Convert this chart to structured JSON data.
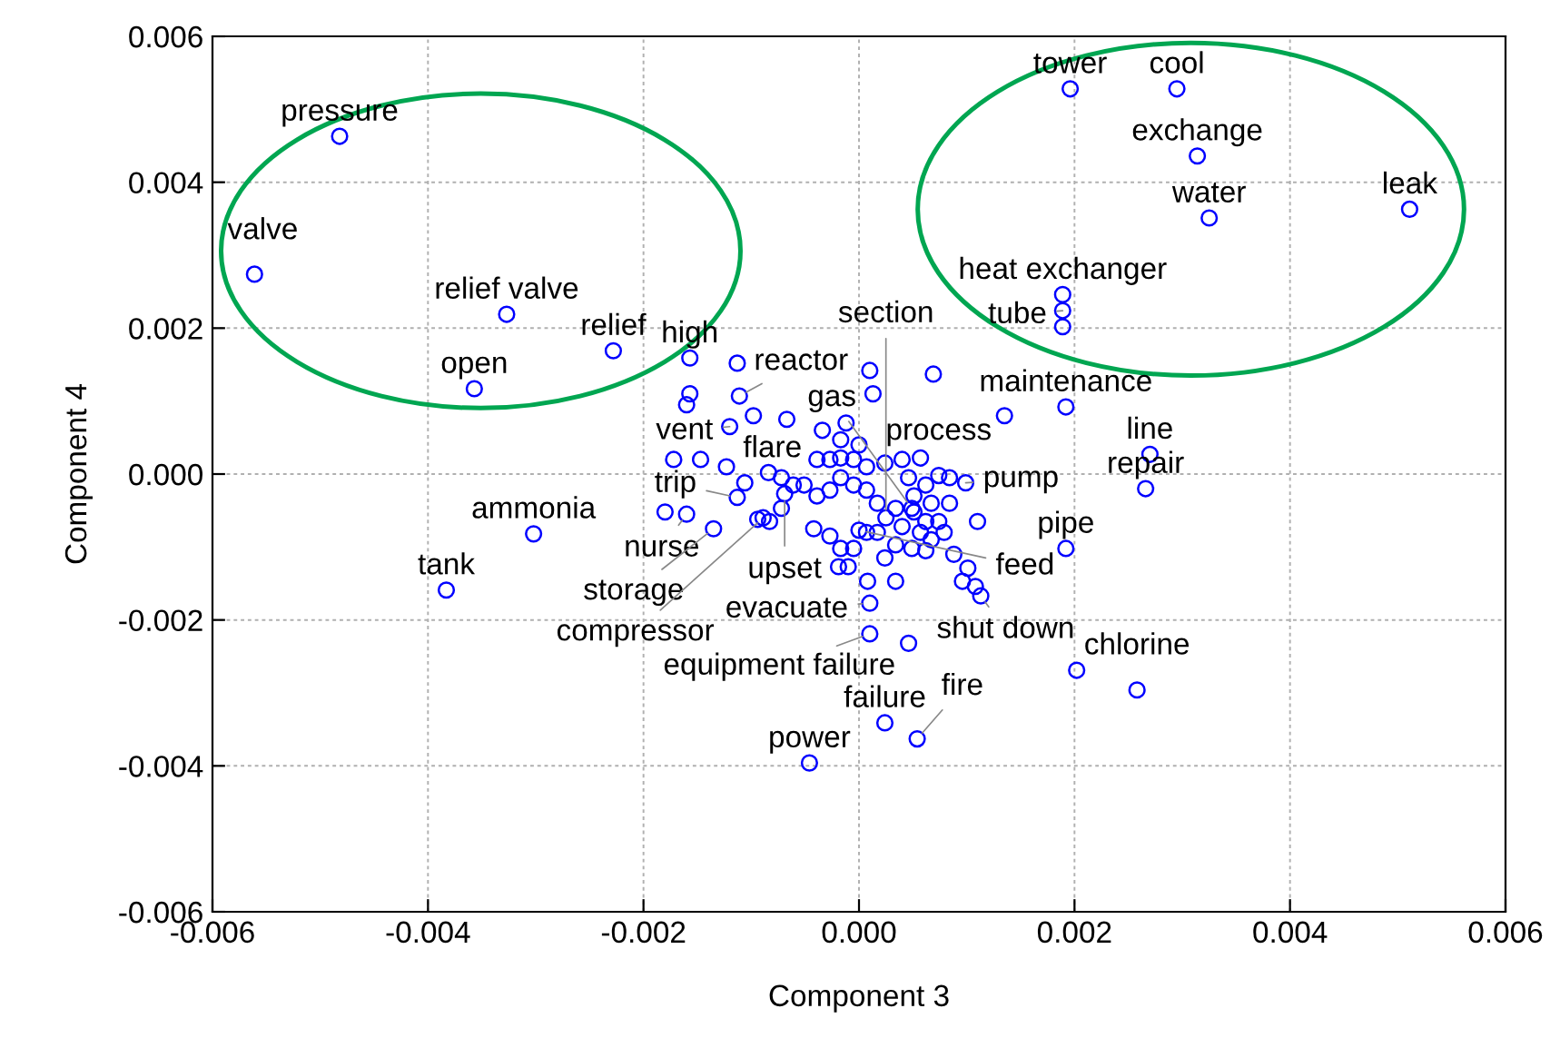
{
  "chart_data": {
    "type": "scatter",
    "xlabel": "Component 3",
    "ylabel": "Component 4",
    "xlim": [
      -0.006,
      0.006
    ],
    "ylim": [
      -0.006,
      0.006
    ],
    "xticks": [
      {
        "value": -0.006,
        "label": "-0.006"
      },
      {
        "value": -0.004,
        "label": "-0.004"
      },
      {
        "value": -0.002,
        "label": "-0.002"
      },
      {
        "value": 0,
        "label": "0.000"
      },
      {
        "value": 0.002,
        "label": "0.002"
      },
      {
        "value": 0.004,
        "label": "0.004"
      },
      {
        "value": 0.006,
        "label": "0.006"
      }
    ],
    "yticks": [
      {
        "value": -0.006,
        "label": "-0.006"
      },
      {
        "value": -0.004,
        "label": "-0.004"
      },
      {
        "value": -0.002,
        "label": "-0.002"
      },
      {
        "value": 0,
        "label": "0.000"
      },
      {
        "value": 0.002,
        "label": "0.002"
      },
      {
        "value": 0.004,
        "label": "0.004"
      },
      {
        "value": 0.006,
        "label": "0.006"
      }
    ],
    "grid": true,
    "marker": "circle",
    "legend": false,
    "series": [
      {
        "color": "#0000ff",
        "x": [
          -0.00482,
          -0.00561,
          -0.00327,
          -0.00228,
          -0.00157,
          -0.00357,
          -0.00111,
          -0.0012,
          0.00196,
          0.00295,
          0.00314,
          0.00325,
          0.00511,
          0.00189,
          0.00189,
          0.00189,
          0.00192,
          0.0027,
          0.00266,
          0.00192,
          0.00258,
          0.00024,
          0.00054,
          -0.00046,
          -0.00302,
          -0.00383,
          0.0001,
          0.0001,
          0.00113,
          0.00074,
          0.00099,
          0.00049,
          -0.00106,
          -0.00113,
          -0.00069,
          -0.0016,
          -0.00135,
          -0.00089,
          0.00025,
          0.0,
          -0.00113,
          -0.00157,
          -0.0016,
          -0.00098,
          -0.00067,
          0.0001,
          0.00013,
          0.00069,
          0.00135,
          -0.00012,
          -0.00034,
          -0.00017,
          0.0,
          -0.00172,
          -0.00147,
          -0.0018,
          -0.00094,
          -0.00083,
          -0.00072,
          -0.00042,
          -0.00027,
          -0.00017,
          -5e-05,
          7e-05,
          0.00017,
          0.00024,
          0.0004,
          0.00057,
          0.00067,
          0.00079,
          0.00084,
          0.00067,
          0.00051,
          0.00034,
          0.00017,
          7e-05,
          -5e-05,
          -0.00017,
          -0.00027,
          -0.00039,
          -0.00051,
          -0.00061,
          -0.00072,
          -0.00084,
          7e-05,
          0.00024,
          0.0004,
          0.00057,
          0.00084,
          0.00062,
          0.00046,
          -5e-05,
          -0.00017,
          -0.00027,
          -0.00039,
          0.00051,
          0.00062,
          0.00074,
          0.00096,
          0.00108,
          0.00101,
          0.00088,
          0.00034,
          0.00049,
          0.00062,
          8e-05,
          0.00034,
          -0.00019,
          -0.0001,
          -0.00123,
          0.00046,
          0.00202,
          0.0011
        ],
        "values": [
          0.00463,
          0.00274,
          0.00219,
          0.00169,
          0.00159,
          0.00117,
          0.00107,
          0.00065,
          0.00528,
          0.00528,
          0.00436,
          0.00351,
          0.00363,
          0.00246,
          0.00224,
          0.00202,
          0.00092,
          0.00027,
          -0.0002,
          -0.00102,
          -0.00296,
          -0.00341,
          -0.00363,
          -0.00396,
          -0.00082,
          -0.00159,
          -0.00177,
          -0.00219,
          -0.00167,
          -2e-05,
          -0.00012,
          -0.00047,
          -0.00012,
          -0.00032,
          -0.00027,
          -0.00055,
          -0.00075,
          -0.0006,
          -0.0006,
          -0.00077,
          0.00152,
          0.0011,
          0.00095,
          0.0008,
          0.00075,
          0.00142,
          0.0011,
          0.00137,
          0.0008,
          0.0007,
          0.0006,
          0.00047,
          0.0004,
          0.0002,
          0.0002,
          -0.00052,
          -0.00062,
          -0.00065,
          -0.00047,
          -0.00075,
          -0.00085,
          -0.00102,
          -0.00102,
          -0.0008,
          -0.0008,
          -0.00115,
          -0.00072,
          -0.0008,
          -0.0009,
          -0.0008,
          -0.0004,
          -0.0004,
          -0.0003,
          -0.00047,
          -0.0004,
          -0.00022,
          -0.00015,
          -5e-05,
          -0.00022,
          -0.0003,
          -0.00015,
          -0.00015,
          -5e-05,
          2e-05,
          0.0001,
          0.00015,
          0.0002,
          0.00022,
          -5e-05,
          -0.00015,
          -5e-05,
          0.0002,
          0.00022,
          0.0002,
          0.0002,
          -0.00052,
          -0.00065,
          -0.00065,
          -0.00147,
          -0.00154,
          -0.00129,
          -0.0011,
          -0.00097,
          -0.00102,
          -0.00105,
          -0.00147,
          -0.00147,
          -0.00127,
          -0.00127,
          0.0001,
          -0.00232,
          -0.00269,
          -0.00065
        ]
      }
    ],
    "annotations": [
      {
        "text": "pressure",
        "x": -0.00482,
        "y": 0.00463
      },
      {
        "text": "valve",
        "x": -0.00561,
        "y": 0.00274
      },
      {
        "text": "relief valve",
        "x": -0.00327,
        "y": 0.00219
      },
      {
        "text": "relief",
        "x": -0.00228,
        "y": 0.00169
      },
      {
        "text": "high",
        "x": -0.00157,
        "y": 0.00159
      },
      {
        "text": "open",
        "x": -0.00357,
        "y": 0.00117
      },
      {
        "text": "reactor",
        "x": -0.00111,
        "y": 0.00107
      },
      {
        "text": "vent",
        "x": -0.0012,
        "y": 0.00065
      },
      {
        "text": "tower",
        "x": 0.00196,
        "y": 0.00528
      },
      {
        "text": "cool",
        "x": 0.00295,
        "y": 0.00528
      },
      {
        "text": "exchange",
        "x": 0.00314,
        "y": 0.00436
      },
      {
        "text": "water",
        "x": 0.00325,
        "y": 0.00351
      },
      {
        "text": "leak",
        "x": 0.00511,
        "y": 0.00363
      },
      {
        "text": "heat exchanger",
        "x": 0.00189,
        "y": 0.00246
      },
      {
        "text": "tube",
        "x": 0.00189,
        "y": 0.00224
      },
      {
        "text": "maintenance",
        "x": 0.00192,
        "y": 0.00092
      },
      {
        "text": "line",
        "x": 0.0027,
        "y": 0.00027
      },
      {
        "text": "repair",
        "x": 0.00266,
        "y": -0.0002
      },
      {
        "text": "pipe",
        "x": 0.00192,
        "y": -0.00102
      },
      {
        "text": "chlorine",
        "x": 0.00258,
        "y": -0.00296
      },
      {
        "text": "failure",
        "x": 0.00024,
        "y": -0.00341
      },
      {
        "text": "fire",
        "x": 0.00054,
        "y": -0.00363
      },
      {
        "text": "power",
        "x": -0.00046,
        "y": -0.00396
      },
      {
        "text": "ammonia",
        "x": -0.00302,
        "y": -0.00082
      },
      {
        "text": "tank",
        "x": -0.00383,
        "y": -0.00159
      },
      {
        "text": "evacuate",
        "x": 0.0001,
        "y": -0.00177
      },
      {
        "text": "equipment failure",
        "x": 0.0001,
        "y": -0.00219
      },
      {
        "text": "shut down",
        "x": 0.00113,
        "y": -0.00167
      },
      {
        "text": "process",
        "x": 0.00074,
        "y": -2e-05
      },
      {
        "text": "pump",
        "x": 0.00099,
        "y": -0.00012
      },
      {
        "text": "gas",
        "x": 0.00049,
        "y": -0.00047
      },
      {
        "text": "flare",
        "x": -0.00106,
        "y": -0.00012
      },
      {
        "text": "trip",
        "x": -0.00113,
        "y": -0.00032
      },
      {
        "text": "upset",
        "x": -0.00069,
        "y": -0.00027
      },
      {
        "text": "nurse",
        "x": -0.0016,
        "y": -0.00055
      },
      {
        "text": "storage",
        "x": -0.00135,
        "y": -0.00075
      },
      {
        "text": "compressor",
        "x": -0.00089,
        "y": -0.0006
      },
      {
        "text": "section",
        "x": 0.00025,
        "y": -0.0006
      },
      {
        "text": "feed",
        "x": 0.0,
        "y": -0.00077
      }
    ]
  }
}
